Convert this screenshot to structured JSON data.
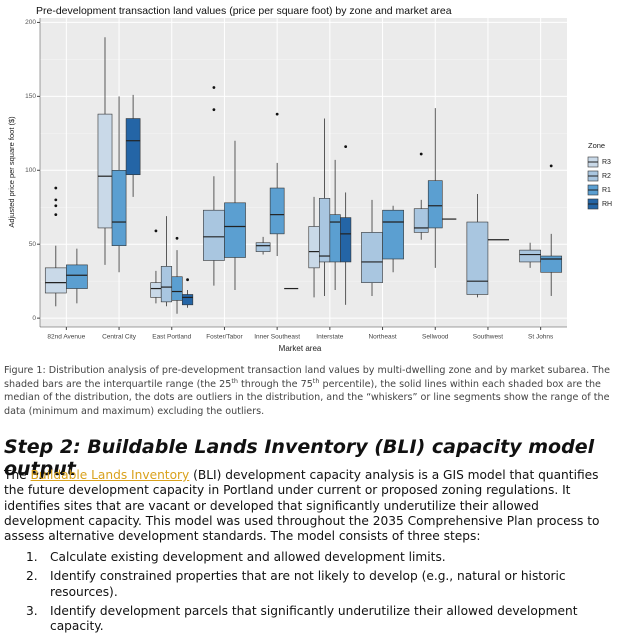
{
  "chart_data": {
    "type": "boxplot",
    "title": "Pre-development transaction land values (price per square foot) by zone and market area",
    "x_label": "Market area",
    "y_label": "Adjusted price per square foot ($)",
    "legend_title": "Zone",
    "categories": [
      "82nd Avenue",
      "Central City",
      "East Portland",
      "Foster/Tabor",
      "Inner Southeast",
      "Interstate",
      "Northeast",
      "Sellwood",
      "Southwest",
      "St Johns"
    ],
    "ylim": [
      -6,
      203
    ],
    "yticks": [
      0,
      50,
      100,
      150,
      200
    ],
    "grid": true,
    "legend": "right",
    "series": [
      {
        "name": "R3",
        "color": "#c9d9e8",
        "boxes": [
          {
            "min": 8,
            "q1": 17,
            "median": 24,
            "q3": 34,
            "max": 49,
            "outliers": [
              88,
              80,
              76,
              70
            ]
          },
          {
            "min": 36,
            "q1": 61,
            "median": 96,
            "q3": 138,
            "max": 190,
            "outliers": []
          },
          {
            "min": 10,
            "q1": 14,
            "median": 20,
            "q3": 24,
            "max": 32,
            "outliers": [
              59
            ]
          },
          null,
          null,
          {
            "min": 14,
            "q1": 34,
            "median": 45,
            "q3": 62,
            "max": 82,
            "outliers": []
          },
          null,
          null,
          null,
          null
        ]
      },
      {
        "name": "R2",
        "color": "#a9c6e0",
        "boxes": [
          null,
          null,
          {
            "min": 8,
            "q1": 11,
            "median": 21,
            "q3": 35,
            "max": 69,
            "outliers": []
          },
          {
            "min": 22,
            "q1": 39,
            "median": 55,
            "q3": 73,
            "max": 96,
            "outliers": [
              156,
              141
            ]
          },
          {
            "min": 43,
            "q1": 45,
            "median": 49,
            "q3": 51,
            "max": 55,
            "outliers": []
          },
          {
            "min": 15,
            "q1": 38,
            "median": 42,
            "q3": 81,
            "max": 135,
            "outliers": []
          },
          {
            "min": 15,
            "q1": 24,
            "median": 38,
            "q3": 58,
            "max": 80,
            "outliers": []
          },
          {
            "min": 53,
            "q1": 58,
            "median": 61,
            "q3": 74,
            "max": 80,
            "outliers": [
              111
            ]
          },
          {
            "min": 14,
            "q1": 16,
            "median": 25,
            "q3": 65,
            "max": 84,
            "outliers": []
          },
          {
            "min": 34,
            "q1": 38,
            "median": 43,
            "q3": 46,
            "max": 51,
            "outliers": []
          }
        ]
      },
      {
        "name": "R1",
        "color": "#5b9fd1",
        "boxes": [
          {
            "min": 10,
            "q1": 20,
            "median": 29,
            "q3": 36,
            "max": 47,
            "outliers": []
          },
          {
            "min": 31,
            "q1": 49,
            "median": 65,
            "q3": 100,
            "max": 150,
            "outliers": []
          },
          {
            "min": 3,
            "q1": 12,
            "median": 18,
            "q3": 28,
            "max": 46,
            "outliers": [
              54
            ]
          },
          {
            "min": 19,
            "q1": 41,
            "median": 62,
            "q3": 78,
            "max": 120,
            "outliers": []
          },
          {
            "min": 42,
            "q1": 57,
            "median": 70,
            "q3": 88,
            "max": 105,
            "outliers": [
              138
            ]
          },
          {
            "min": 19,
            "q1": 38,
            "median": 65,
            "q3": 70,
            "max": 107,
            "outliers": []
          },
          {
            "min": 31,
            "q1": 40,
            "median": 65,
            "q3": 73,
            "max": 76,
            "outliers": []
          },
          {
            "min": 34,
            "q1": 61,
            "median": 76,
            "q3": 93,
            "max": 142,
            "outliers": []
          },
          null,
          {
            "min": 15,
            "q1": 31,
            "median": 40,
            "q3": 42,
            "max": 57,
            "outliers": [
              103
            ]
          }
        ]
      },
      {
        "name": "RH",
        "color": "#2465a6",
        "boxes": [
          null,
          {
            "min": 82,
            "q1": 97,
            "median": 120,
            "q3": 135,
            "max": 151,
            "outliers": []
          },
          {
            "min": 7,
            "q1": 9,
            "median": 14,
            "q3": 16,
            "max": 19,
            "outliers": [
              26
            ]
          },
          null,
          {
            "min": 20,
            "q1": 20,
            "median": 20,
            "q3": 20,
            "max": 20,
            "outliers": []
          },
          {
            "min": 9,
            "q1": 38,
            "median": 57,
            "q3": 68,
            "max": 85,
            "outliers": [
              116
            ]
          },
          null,
          {
            "min": 67,
            "q1": 67,
            "median": 67,
            "q3": 67,
            "max": 67,
            "outliers": []
          },
          {
            "min": 53,
            "q1": 53,
            "median": 53,
            "q3": 53,
            "max": 53,
            "outliers": []
          },
          null
        ]
      }
    ]
  },
  "caption": [
    "Figure 1: Distribution analysis of pre-development transaction land values by multi-dwelling zone and by market subarea. The shaded bars are the interquartile range (the 25",
    "th",
    " through the 75",
    "th",
    " percentile), the solid lines within each shaded box are the median of the distribution, the dots are outliers in the distribution, and the “whiskers” or line segments show the range of the data (minimum and maximum) excluding the outliers."
  ],
  "section": {
    "heading": "Step 2: Buildable Lands Inventory (BLI) capacity model output",
    "paragraph": [
      "The ",
      "Buildable Lands Inventory",
      " (BLI) development capacity analysis is a GIS model that quantifies the future development capacity in Portland under current or proposed zoning regulations. It identifies sites that are vacant or developed that significantly underutilize their allowed development capacity. This model was used throughout the 2035 Comprehensive Plan process to assess alternative development standards. The model consists of three steps:"
    ],
    "steps": [
      {
        "number": "1.",
        "text": "Calculate existing development and allowed development limits."
      },
      {
        "number": "2.",
        "text": "Identify constrained properties that are not likely to develop (e.g., natural or historic resources)."
      },
      {
        "number": "3.",
        "text": "Identify development parcels that significantly underutilize their allowed development capacity."
      }
    ]
  }
}
